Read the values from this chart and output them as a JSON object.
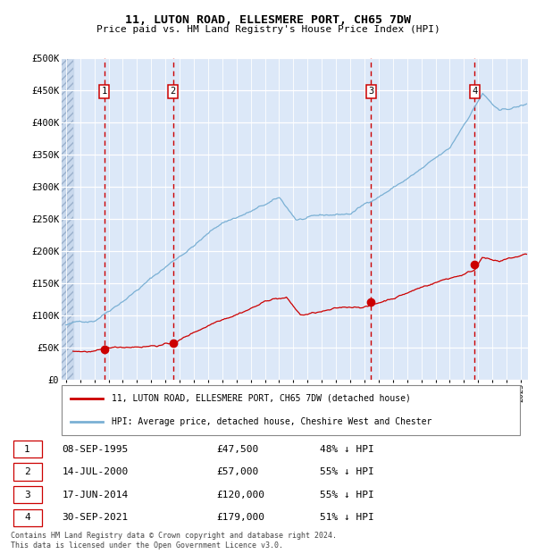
{
  "title1": "11, LUTON ROAD, ELLESMERE PORT, CH65 7DW",
  "title2": "Price paid vs. HM Land Registry's House Price Index (HPI)",
  "ylabel_ticks": [
    "£0",
    "£50K",
    "£100K",
    "£150K",
    "£200K",
    "£250K",
    "£300K",
    "£350K",
    "£400K",
    "£450K",
    "£500K"
  ],
  "ytick_vals": [
    0,
    50000,
    100000,
    150000,
    200000,
    250000,
    300000,
    350000,
    400000,
    450000,
    500000
  ],
  "xlim_start": 1992.7,
  "xlim_end": 2025.5,
  "ylim_min": 0,
  "ylim_max": 500000,
  "transactions": [
    {
      "num": 1,
      "date_year": 1995.69,
      "price": 47500,
      "label": "08-SEP-1995",
      "price_str": "£47,500",
      "pct": "48% ↓ HPI"
    },
    {
      "num": 2,
      "date_year": 2000.54,
      "price": 57000,
      "label": "14-JUL-2000",
      "price_str": "£57,000",
      "pct": "55% ↓ HPI"
    },
    {
      "num": 3,
      "date_year": 2014.46,
      "price": 120000,
      "label": "17-JUN-2014",
      "price_str": "£120,000",
      "pct": "55% ↓ HPI"
    },
    {
      "num": 4,
      "date_year": 2021.75,
      "price": 179000,
      "label": "30-SEP-2021",
      "price_str": "£179,000",
      "pct": "51% ↓ HPI"
    }
  ],
  "legend_line1": "11, LUTON ROAD, ELLESMERE PORT, CH65 7DW (detached house)",
  "legend_line2": "HPI: Average price, detached house, Cheshire West and Chester",
  "footnote1": "Contains HM Land Registry data © Crown copyright and database right 2024.",
  "footnote2": "This data is licensed under the Open Government Licence v3.0.",
  "plot_bg": "#dce8f8",
  "grid_color": "#ffffff",
  "red_line_color": "#cc0000",
  "blue_line_color": "#7ab0d4",
  "dashed_vline_color": "#cc0000",
  "hatch_region_end": 1993.5
}
